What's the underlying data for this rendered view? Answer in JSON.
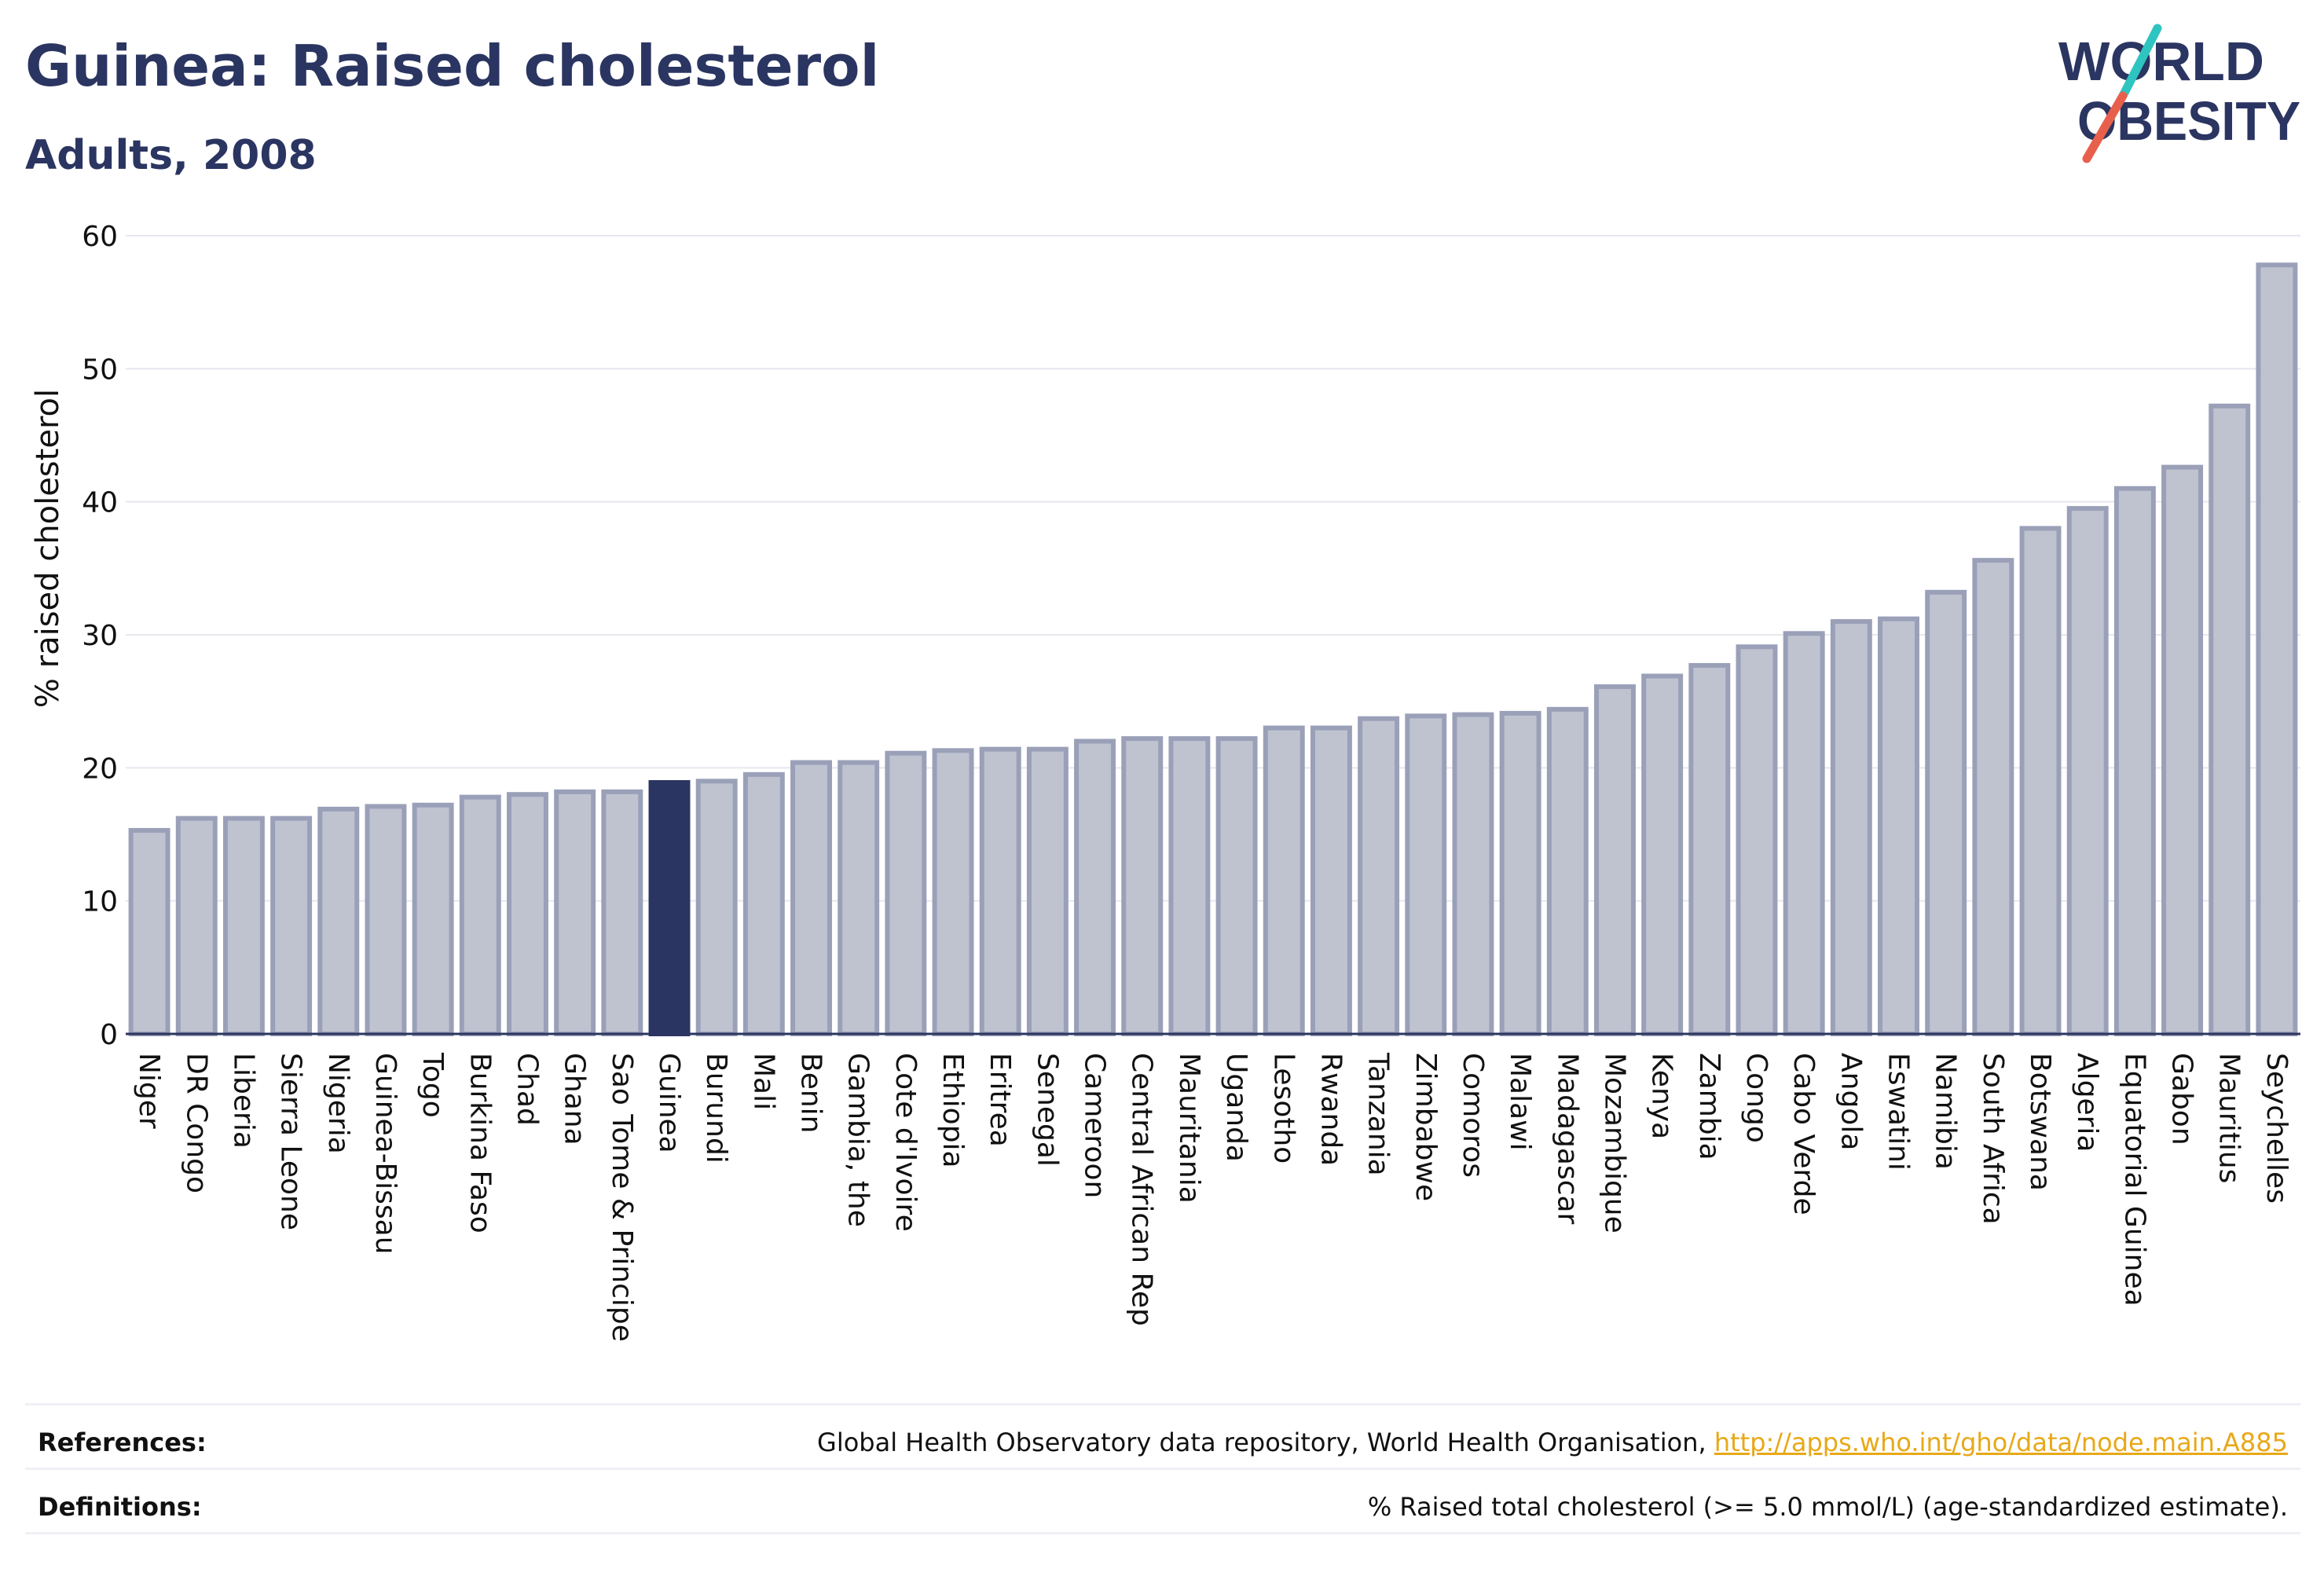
{
  "header": {
    "title": "Guinea: Raised cholesterol",
    "subtitle": "Adults, 2008"
  },
  "logo": {
    "line1": "WORLD",
    "line2": "OBESITY",
    "colors": {
      "text": "#2b3561",
      "slash_top": "#2ec4c0",
      "slash_bottom": "#e8604c"
    }
  },
  "colors": {
    "bar_default": "#bfc3d0",
    "bar_default_edge": "#9aa0b8",
    "bar_highlight": "#2b3561",
    "grid": "#e6e8ef",
    "axis": "#2b3561"
  },
  "chart_data": {
    "type": "bar",
    "title": "Guinea: Raised cholesterol",
    "subtitle": "Adults, 2008",
    "xlabel": "",
    "ylabel": "% raised cholesterol",
    "ylim": [
      0,
      60
    ],
    "yticks": [
      0,
      10,
      20,
      30,
      40,
      50,
      60
    ],
    "grid": true,
    "highlight": "Guinea",
    "categories": [
      "Niger",
      "DR Congo",
      "Liberia",
      "Sierra Leone",
      "Nigeria",
      "Guinea-Bissau",
      "Togo",
      "Burkina Faso",
      "Chad",
      "Ghana",
      "Sao Tome & Principe",
      "Guinea",
      "Burundi",
      "Mali",
      "Benin",
      "Gambia, the",
      "Cote d'Ivoire",
      "Ethiopia",
      "Eritrea",
      "Senegal",
      "Cameroon",
      "Central African Rep",
      "Mauritania",
      "Uganda",
      "Lesotho",
      "Rwanda",
      "Tanzania",
      "Zimbabwe",
      "Comoros",
      "Malawi",
      "Madagascar",
      "Mozambique",
      "Kenya",
      "Zambia",
      "Congo",
      "Cabo Verde",
      "Angola",
      "Eswatini",
      "Namibia",
      "South Africa",
      "Botswana",
      "Algeria",
      "Equatorial Guinea",
      "Gabon",
      "Mauritius",
      "Seychelles"
    ],
    "values": [
      15.3,
      16.2,
      16.2,
      16.2,
      16.9,
      17.1,
      17.2,
      17.8,
      18.0,
      18.2,
      18.2,
      18.9,
      19.0,
      19.5,
      20.4,
      20.4,
      21.1,
      21.3,
      21.4,
      21.4,
      22.0,
      22.2,
      22.2,
      22.2,
      23.0,
      23.0,
      23.7,
      23.9,
      24.0,
      24.1,
      24.4,
      26.1,
      26.9,
      27.7,
      29.1,
      30.1,
      31.0,
      31.2,
      33.2,
      35.6,
      38.0,
      39.5,
      41.0,
      42.6,
      47.2,
      57.8
    ]
  },
  "footer": {
    "references_label": "References:",
    "references_text": "Global Health Observatory data repository, World Health Organisation, ",
    "references_link": "http://apps.who.int/gho/data/node.main.A885",
    "definitions_label": "Definitions:",
    "definitions_text": "% Raised total cholesterol (>= 5.0 mmol/L) (age-standardized estimate)."
  }
}
